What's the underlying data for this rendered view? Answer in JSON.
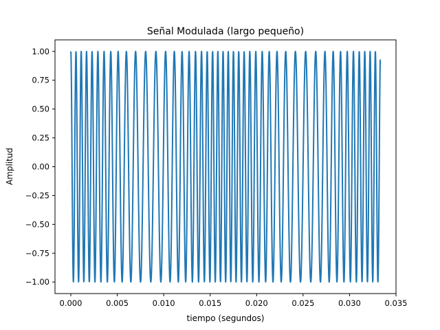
{
  "chart_data": {
    "type": "line",
    "title": "Señal Modulada (largo pequeño)",
    "xlabel": "tiempo (segundos)",
    "ylabel": "Amplitud",
    "xlim": [
      -0.0017,
      0.035
    ],
    "ylim": [
      -1.1,
      1.1
    ],
    "xticks": [
      "0.000",
      "0.005",
      "0.010",
      "0.015",
      "0.020",
      "0.025",
      "0.030",
      "0.035"
    ],
    "yticks": [
      "−1.00",
      "−0.75",
      "−0.50",
      "−0.25",
      "0.00",
      "0.25",
      "0.50",
      "0.75",
      "1.00"
    ],
    "grid": false,
    "legend": "none",
    "series": [
      {
        "color": "#1f77b4",
        "x_range": [
          0.0,
          0.0333
        ],
        "signal": "cos(2*pi*(f0*t + (dev/(2*pi*fm))*sin(2*pi*fm*t)))",
        "parameters": {
          "f0": 1350,
          "dev": 450,
          "fm": 60
        },
        "samples": 2000
      }
    ]
  }
}
